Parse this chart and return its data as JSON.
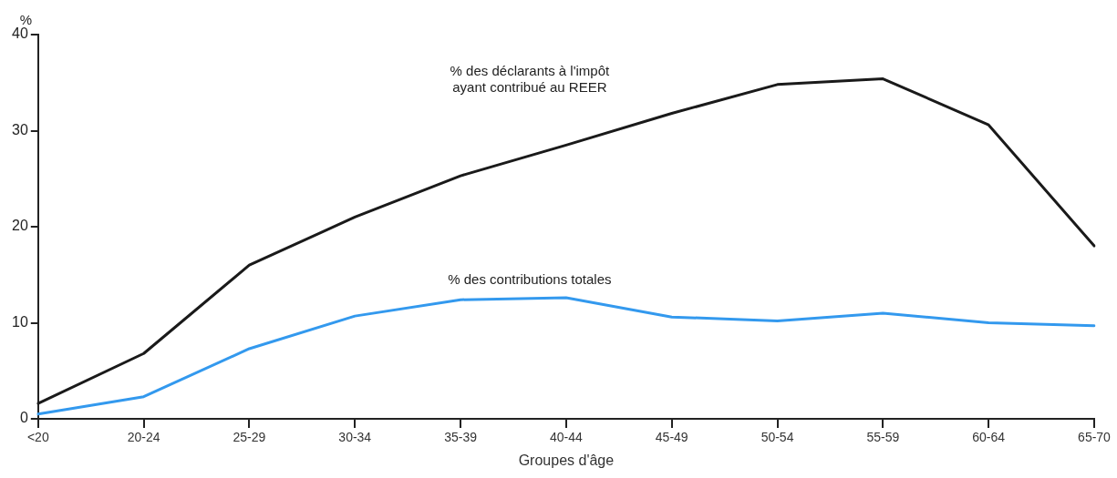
{
  "chart_data": {
    "type": "line",
    "ylabel": "%",
    "xlabel": "Groupes d'âge",
    "categories": [
      "<20",
      "20-24",
      "25-29",
      "30-34",
      "35-39",
      "40-44",
      "45-49",
      "50-54",
      "55-59",
      "60-64",
      "65-70"
    ],
    "series": [
      {
        "color": "#1a1a1a",
        "values": [
          1.6,
          6.8,
          16,
          21,
          25.3,
          28.5,
          31.8,
          34.8,
          35.4,
          30.6,
          18
        ]
      },
      {
        "color": "#3399ee",
        "values": [
          0.5,
          2.3,
          7.3,
          10.7,
          12.4,
          12.6,
          10.6,
          10.2,
          11,
          10,
          9.7
        ]
      }
    ],
    "ylim": [
      0,
      40
    ],
    "yticks": [
      0,
      10,
      20,
      30,
      40
    ],
    "grid": false,
    "legend": false,
    "marker": "none",
    "line_style": "solid",
    "annotations": [
      "% des déclarants à l'impôt\nayant contribué au REER",
      "% des contributions totales"
    ]
  }
}
